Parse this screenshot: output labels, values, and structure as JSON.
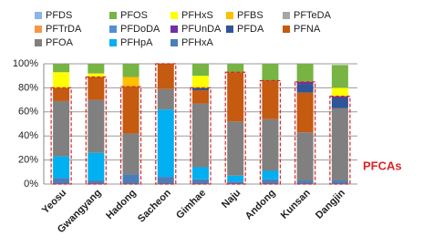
{
  "chart_data": {
    "type": "bar",
    "stacked": true,
    "categories": [
      "Yeosu",
      "Gwangyang",
      "Hadong",
      "Sacheon",
      "Gimhae",
      "Naju",
      "Andong",
      "Kunsan",
      "Dangjin"
    ],
    "series": [
      {
        "name": "PFDS",
        "color": "#8db4e2",
        "values": [
          0,
          0,
          0,
          0,
          0,
          0,
          0,
          0,
          0
        ]
      },
      {
        "name": "PFOS",
        "color": "#77b444",
        "values": [
          7,
          8,
          11,
          0,
          10,
          7,
          14,
          15,
          19
        ]
      },
      {
        "name": "PFHxS",
        "color": "#ffff00",
        "values": [
          13,
          3,
          0,
          0,
          10,
          0,
          0,
          0,
          7
        ]
      },
      {
        "name": "PFBS",
        "color": "#ffc000",
        "values": [
          0,
          0,
          8,
          0,
          0,
          0,
          0,
          0,
          0
        ]
      },
      {
        "name": "PFTeDA",
        "color": "#a6a6a6",
        "values": [
          0,
          0,
          0,
          0,
          0,
          0,
          0,
          0,
          0
        ]
      },
      {
        "name": "PFTrDA",
        "color": "#f79646",
        "values": [
          0,
          0,
          0,
          0,
          0,
          0,
          0,
          0,
          0
        ]
      },
      {
        "name": "PFDoDA",
        "color": "#558ed5",
        "values": [
          0,
          0,
          0,
          0,
          0,
          0,
          0,
          0,
          0
        ]
      },
      {
        "name": "PFUnDA",
        "color": "#7030a0",
        "values": [
          0,
          0,
          0,
          0,
          0,
          0,
          0,
          2,
          1
        ]
      },
      {
        "name": "PFDA",
        "color": "#2f5597",
        "values": [
          0,
          0,
          0,
          0,
          2,
          0,
          0,
          7,
          9
        ]
      },
      {
        "name": "PFNA",
        "color": "#c55a11",
        "values": [
          11,
          19,
          39,
          21,
          11,
          41,
          32,
          33,
          0
        ]
      },
      {
        "name": "PFOA",
        "color": "#808080",
        "values": [
          46,
          44,
          34,
          17,
          53,
          45,
          43,
          40,
          60
        ]
      },
      {
        "name": "PFHpA",
        "color": "#00b0f0",
        "values": [
          18,
          23,
          0,
          56,
          10,
          5,
          7,
          0,
          0
        ]
      },
      {
        "name": "PFHxA",
        "color": "#4a7ebb",
        "values": [
          5,
          3,
          8,
          6,
          4,
          2,
          4,
          3,
          3
        ]
      }
    ],
    "ylim": [
      0,
      100
    ],
    "yticks": [
      {
        "value": 0,
        "label": "0%"
      },
      {
        "value": 20,
        "label": "20%"
      },
      {
        "value": 40,
        "label": "40%"
      },
      {
        "value": 60,
        "label": "60%"
      },
      {
        "value": 80,
        "label": "80%"
      },
      {
        "value": 100,
        "label": "100%"
      }
    ],
    "grid": true,
    "annotation": "PFCAs"
  }
}
